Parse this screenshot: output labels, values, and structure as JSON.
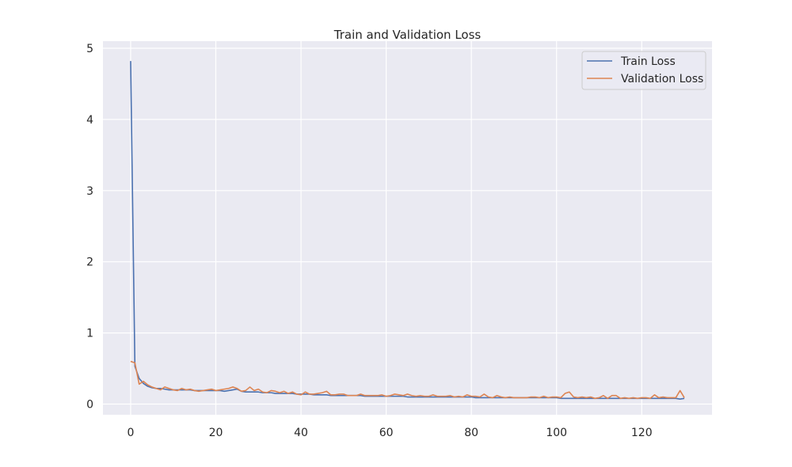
{
  "colors": {
    "plot_background": "#eaeaf2",
    "grid": "#ffffff",
    "train": "#4c72b0",
    "validation": "#dd8452"
  },
  "chart_data": {
    "type": "line",
    "title": "Train and Validation Loss",
    "xlabel": "",
    "ylabel": "",
    "xlim": [
      -6.5,
      136.5
    ],
    "ylim": [
      -0.15,
      5.1
    ],
    "xticks": [
      0,
      20,
      40,
      60,
      80,
      100,
      120
    ],
    "yticks": [
      0,
      1,
      2,
      3,
      4,
      5
    ],
    "grid": true,
    "legend_position": "upper right",
    "x": [
      0,
      1,
      2,
      3,
      4,
      5,
      6,
      7,
      8,
      9,
      10,
      11,
      12,
      13,
      14,
      15,
      16,
      17,
      18,
      19,
      20,
      21,
      22,
      23,
      24,
      25,
      26,
      27,
      28,
      29,
      30,
      31,
      32,
      33,
      34,
      35,
      36,
      37,
      38,
      39,
      40,
      41,
      42,
      43,
      44,
      45,
      46,
      47,
      48,
      49,
      50,
      51,
      52,
      53,
      54,
      55,
      56,
      57,
      58,
      59,
      60,
      61,
      62,
      63,
      64,
      65,
      66,
      67,
      68,
      69,
      70,
      71,
      72,
      73,
      74,
      75,
      76,
      77,
      78,
      79,
      80,
      81,
      82,
      83,
      84,
      85,
      86,
      87,
      88,
      89,
      90,
      91,
      92,
      93,
      94,
      95,
      96,
      97,
      98,
      99,
      100,
      101,
      102,
      103,
      104,
      105,
      106,
      107,
      108,
      109,
      110,
      111,
      112,
      113,
      114,
      115,
      116,
      117,
      118,
      119,
      120,
      121,
      122,
      123,
      124,
      125,
      126,
      127,
      128,
      129,
      130
    ],
    "series": [
      {
        "name": "Train Loss",
        "color_key": "train",
        "values": [
          4.82,
          0.53,
          0.36,
          0.29,
          0.25,
          0.23,
          0.22,
          0.22,
          0.21,
          0.2,
          0.2,
          0.2,
          0.2,
          0.2,
          0.2,
          0.19,
          0.19,
          0.19,
          0.19,
          0.19,
          0.19,
          0.19,
          0.18,
          0.19,
          0.2,
          0.21,
          0.18,
          0.17,
          0.17,
          0.17,
          0.17,
          0.16,
          0.16,
          0.16,
          0.15,
          0.15,
          0.15,
          0.15,
          0.15,
          0.14,
          0.14,
          0.14,
          0.14,
          0.13,
          0.13,
          0.13,
          0.13,
          0.12,
          0.12,
          0.12,
          0.12,
          0.12,
          0.12,
          0.12,
          0.12,
          0.11,
          0.11,
          0.11,
          0.11,
          0.11,
          0.11,
          0.11,
          0.11,
          0.11,
          0.11,
          0.1,
          0.1,
          0.1,
          0.1,
          0.1,
          0.1,
          0.1,
          0.1,
          0.1,
          0.1,
          0.1,
          0.1,
          0.1,
          0.1,
          0.1,
          0.1,
          0.09,
          0.09,
          0.09,
          0.09,
          0.09,
          0.09,
          0.09,
          0.09,
          0.09,
          0.09,
          0.09,
          0.09,
          0.09,
          0.09,
          0.09,
          0.09,
          0.09,
          0.09,
          0.09,
          0.09,
          0.08,
          0.08,
          0.08,
          0.08,
          0.08,
          0.08,
          0.08,
          0.08,
          0.08,
          0.08,
          0.08,
          0.08,
          0.08,
          0.08,
          0.08,
          0.08,
          0.08,
          0.08,
          0.08,
          0.08,
          0.08,
          0.08,
          0.08,
          0.08,
          0.08,
          0.08,
          0.08,
          0.08,
          0.07,
          0.08
        ]
      },
      {
        "name": "Validation Loss",
        "color_key": "validation",
        "values": [
          0.6,
          0.58,
          0.28,
          0.32,
          0.27,
          0.24,
          0.22,
          0.2,
          0.24,
          0.22,
          0.2,
          0.19,
          0.22,
          0.2,
          0.21,
          0.19,
          0.18,
          0.19,
          0.2,
          0.21,
          0.19,
          0.2,
          0.21,
          0.22,
          0.24,
          0.22,
          0.18,
          0.19,
          0.24,
          0.19,
          0.21,
          0.17,
          0.16,
          0.19,
          0.18,
          0.16,
          0.18,
          0.15,
          0.17,
          0.14,
          0.13,
          0.17,
          0.14,
          0.14,
          0.15,
          0.16,
          0.18,
          0.13,
          0.13,
          0.14,
          0.14,
          0.12,
          0.12,
          0.12,
          0.14,
          0.12,
          0.12,
          0.12,
          0.12,
          0.13,
          0.11,
          0.12,
          0.14,
          0.13,
          0.12,
          0.14,
          0.12,
          0.11,
          0.12,
          0.11,
          0.11,
          0.13,
          0.11,
          0.11,
          0.11,
          0.12,
          0.1,
          0.11,
          0.1,
          0.13,
          0.11,
          0.11,
          0.1,
          0.14,
          0.1,
          0.09,
          0.12,
          0.1,
          0.09,
          0.1,
          0.09,
          0.09,
          0.09,
          0.09,
          0.1,
          0.1,
          0.09,
          0.11,
          0.09,
          0.1,
          0.1,
          0.09,
          0.15,
          0.17,
          0.1,
          0.09,
          0.1,
          0.09,
          0.1,
          0.08,
          0.09,
          0.12,
          0.08,
          0.12,
          0.12,
          0.08,
          0.09,
          0.08,
          0.09,
          0.08,
          0.09,
          0.09,
          0.08,
          0.13,
          0.09,
          0.1,
          0.09,
          0.09,
          0.09,
          0.19,
          0.09
        ]
      }
    ]
  }
}
